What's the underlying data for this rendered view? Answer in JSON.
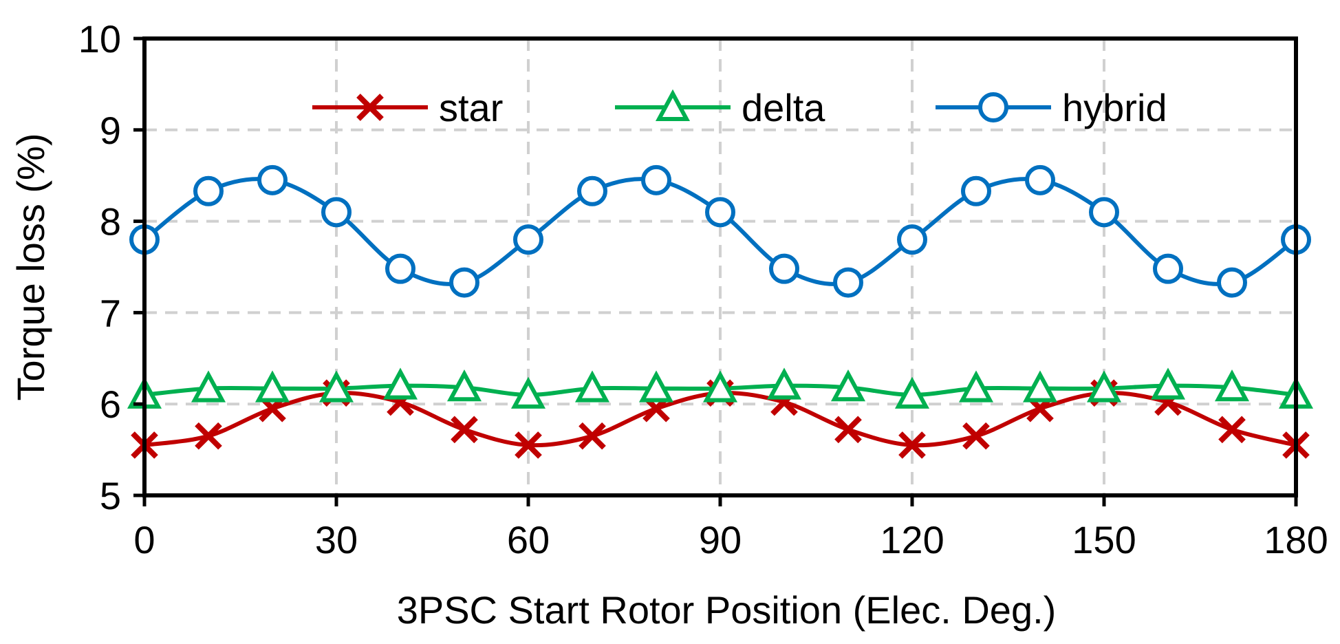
{
  "chart_data": {
    "type": "line",
    "title": "",
    "xlabel": "3PSC Start Rotor Position (Elec. Deg.)",
    "ylabel": "Torque loss (%)",
    "xlim": [
      0,
      180
    ],
    "ylim": [
      5,
      10
    ],
    "xticks": [
      0,
      30,
      60,
      90,
      120,
      150,
      180
    ],
    "yticks": [
      5,
      6,
      7,
      8,
      9,
      10
    ],
    "grid": true,
    "legend_position": "top",
    "x": [
      0,
      10,
      20,
      30,
      40,
      50,
      60,
      70,
      80,
      90,
      100,
      110,
      120,
      130,
      140,
      150,
      160,
      170,
      180
    ],
    "series": [
      {
        "name": "star",
        "color": "#c00000",
        "marker": "x",
        "values": [
          5.55,
          5.65,
          5.95,
          6.12,
          6.02,
          5.72,
          5.55,
          5.65,
          5.95,
          6.12,
          6.02,
          5.72,
          5.55,
          5.65,
          5.95,
          6.12,
          6.02,
          5.72,
          5.55
        ]
      },
      {
        "name": "delta",
        "color": "#00b050",
        "marker": "triangle",
        "values": [
          6.1,
          6.17,
          6.17,
          6.17,
          6.2,
          6.18,
          6.1,
          6.17,
          6.17,
          6.17,
          6.2,
          6.18,
          6.1,
          6.17,
          6.17,
          6.17,
          6.2,
          6.18,
          6.1
        ]
      },
      {
        "name": "hybrid",
        "color": "#0070c0",
        "marker": "circle",
        "values": [
          7.8,
          8.33,
          8.45,
          8.1,
          7.48,
          7.33,
          7.8,
          8.33,
          8.45,
          8.1,
          7.48,
          7.33,
          7.8,
          8.33,
          8.45,
          8.1,
          7.48,
          7.33,
          7.8
        ]
      }
    ]
  }
}
